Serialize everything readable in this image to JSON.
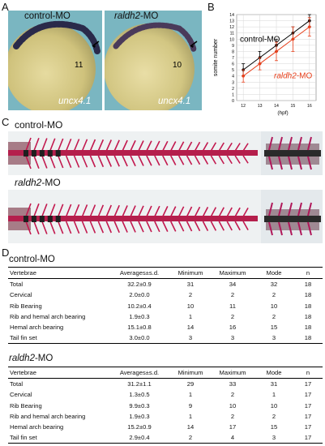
{
  "panels": {
    "A": "A",
    "B": "B",
    "C": "C",
    "D": "D"
  },
  "panelA": {
    "left": {
      "title": "control-MO",
      "gene": "uncx4.1",
      "count": "11"
    },
    "right": {
      "title_italic": "raldh2",
      "title_suffix": "-MO",
      "gene": "uncx4.1",
      "count": "10"
    }
  },
  "chart_data": {
    "type": "line",
    "x": [
      12,
      13,
      14,
      15,
      16
    ],
    "xlabel": "(hpf)",
    "ylabel": "somite number",
    "ylim": [
      0,
      14
    ],
    "yticks": [
      0,
      1,
      2,
      3,
      4,
      5,
      6,
      7,
      8,
      9,
      10,
      11,
      12,
      13,
      14
    ],
    "series": [
      {
        "name": "control-MO",
        "color": "#000000",
        "values": [
          5,
          7,
          9,
          11,
          13
        ],
        "err": [
          1,
          1,
          1,
          1,
          1
        ]
      },
      {
        "name": "raldh2-MO",
        "color": "#e8401c",
        "values": [
          4,
          6,
          8,
          10,
          12
        ],
        "err": [
          1,
          1,
          1.5,
          2,
          1.5
        ]
      }
    ],
    "legend": {
      "control": "control-MO",
      "raldh2_italic": "raldh2",
      "raldh2_suffix": "-MO"
    }
  },
  "panelC": {
    "top_label": "control-MO",
    "bottom_italic": "raldh2",
    "bottom_suffix": "-MO"
  },
  "tables": [
    {
      "title": "control-MO",
      "headers": [
        "Vertebrae",
        "Averages±s.d.",
        "Minimum",
        "Maximum",
        "Mode",
        "n"
      ],
      "rows": [
        [
          "Total",
          "32.2±0.9",
          "31",
          "34",
          "32",
          "18"
        ],
        [
          "Cervical",
          "2.0±0.0",
          "2",
          "2",
          "2",
          "18"
        ],
        [
          "Rib Bearing",
          "10.2±0.4",
          "10",
          "11",
          "10",
          "18"
        ],
        [
          "Rib and hemal arch bearing",
          "1.9±0.3",
          "1",
          "2",
          "2",
          "18"
        ],
        [
          "Hemal arch bearing",
          "15.1±0.8",
          "14",
          "16",
          "15",
          "18"
        ],
        [
          "Tail fin set",
          "3.0±0.0",
          "3",
          "3",
          "3",
          "18"
        ]
      ]
    },
    {
      "title_italic": "raldh2",
      "title_suffix": "-MO",
      "headers": [
        "Vertebrae",
        "Averages±s.d.",
        "Minimum",
        "Maximum",
        "Mode",
        "n"
      ],
      "rows": [
        [
          "Total",
          "31.2±1.1",
          "29",
          "33",
          "31",
          "17"
        ],
        [
          "Cervical",
          "1.3±0.5",
          "1",
          "2",
          "1",
          "17"
        ],
        [
          "Rib Bearing",
          "9.9±0.3",
          "9",
          "10",
          "10",
          "17"
        ],
        [
          "Rib and hemal arch bearing",
          "1.9±0.3",
          "1",
          "2",
          "2",
          "17"
        ],
        [
          "Hemal arch bearing",
          "15.2±0.9",
          "14",
          "17",
          "15",
          "17"
        ],
        [
          "Tail fin set",
          "2.9±0.4",
          "2",
          "4",
          "3",
          "17"
        ]
      ]
    }
  ]
}
